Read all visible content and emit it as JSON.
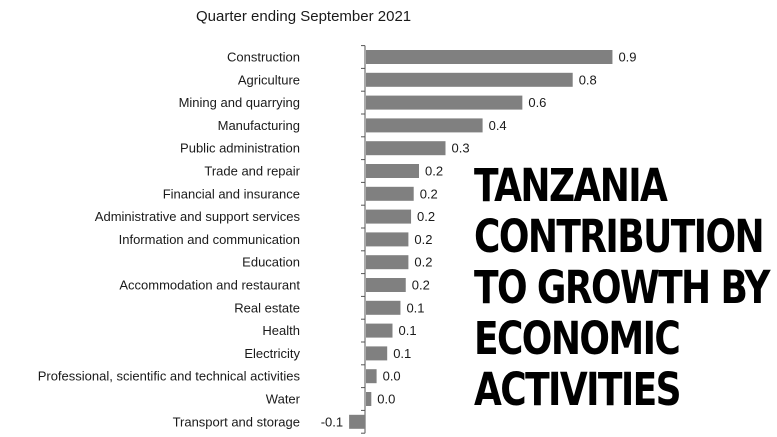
{
  "chart_data": {
    "type": "bar",
    "orientation": "horizontal",
    "subtitle": "Quarter ending September 2021",
    "categories": [
      "Construction",
      "Agriculture",
      "Mining and quarrying",
      "Manufacturing",
      "Public administration",
      "Trade and repair",
      "Financial and insurance",
      "Administrative and support services",
      "Information and communication",
      "Education",
      "Accommodation and restaurant",
      "Real estate",
      "Health",
      "Electricity",
      "Professional, scientific and technical activities",
      "Water",
      "Transport and storage"
    ],
    "values": [
      0.93,
      0.78,
      0.59,
      0.44,
      0.3,
      0.2,
      0.18,
      0.17,
      0.16,
      0.16,
      0.15,
      0.13,
      0.1,
      0.08,
      0.04,
      0.02,
      -0.06
    ],
    "value_labels": [
      "0.9",
      "0.8",
      "0.6",
      "0.4",
      "0.3",
      "0.2",
      "0.2",
      "0.2",
      "0.2",
      "0.2",
      "0.2",
      "0.1",
      "0.1",
      "0.1",
      "0.0",
      "0.0",
      "-0.1"
    ],
    "bar_color": "#808080",
    "xlim": [
      -0.1,
      1.0
    ],
    "grid": false,
    "legend": "none"
  },
  "overlay": {
    "title_lines": [
      "TANZANIA",
      "CONTRIBUTION",
      "TO GROWTH BY",
      "ECONOMIC",
      "ACTIVITIES"
    ]
  }
}
